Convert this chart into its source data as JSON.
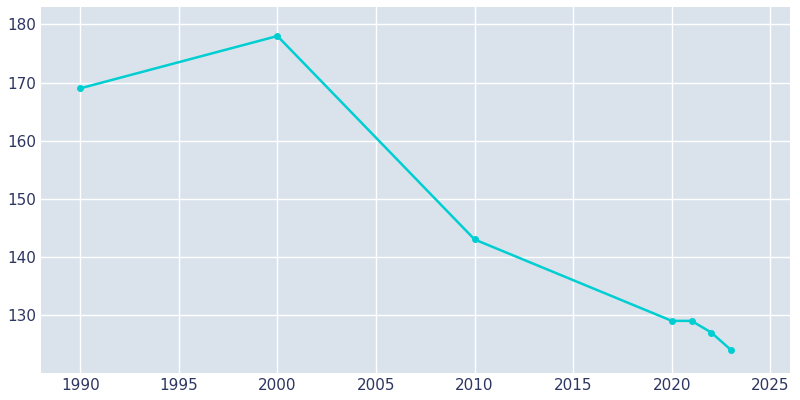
{
  "years": [
    1990,
    2000,
    2010,
    2020,
    2021,
    2022,
    2023
  ],
  "population": [
    169,
    178,
    143,
    129,
    129,
    127,
    124
  ],
  "line_color": "#00CED1",
  "marker": "o",
  "marker_size": 4,
  "plot_bg_color": "#DAE3EC",
  "figure_bg_color": "#FFFFFF",
  "grid_color": "#FFFFFF",
  "xlim": [
    1988,
    2026
  ],
  "ylim": [
    120,
    183
  ],
  "xticks": [
    1990,
    1995,
    2000,
    2005,
    2010,
    2015,
    2020,
    2025
  ],
  "yticks": [
    130,
    140,
    150,
    160,
    170,
    180
  ],
  "tick_label_color": "#2D3561",
  "tick_fontsize": 11,
  "linewidth": 1.8
}
